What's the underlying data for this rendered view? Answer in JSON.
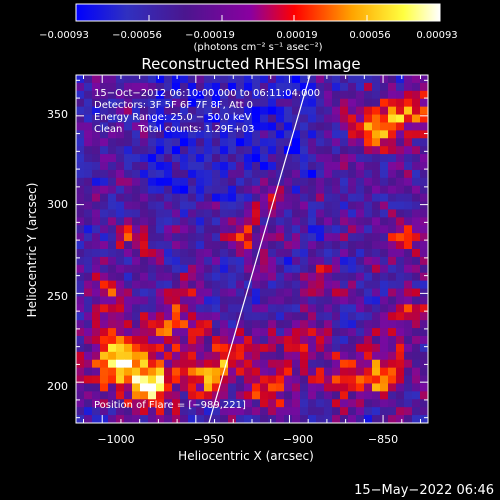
{
  "chart_data": {
    "type": "heatmap",
    "title": "Reconstructed RHESSI Image",
    "xlabel": "Heliocentric X (arcsec)",
    "ylabel": "Heliocentric Y (arcsec)",
    "x_ticks": [
      "−1000",
      "−950",
      "−900",
      "−850"
    ],
    "x_tick_values": [
      -1000,
      -950,
      -900,
      -850
    ],
    "y_ticks": [
      "200",
      "250",
      "300",
      "350"
    ],
    "y_tick_values": [
      200,
      250,
      300,
      350
    ],
    "xlim": [
      -1014,
      -826
    ],
    "ylim": [
      177,
      373
    ],
    "colorbar": {
      "ticks": [
        "−0.00093",
        "−0.00056",
        "−0.00019",
        "0.00019",
        "0.00056",
        "0.00093"
      ],
      "range": [
        -0.00093,
        0.00093
      ],
      "colors": [
        "#0000ff",
        "#3030c0",
        "#4b168f",
        "#8a00a0",
        "#ff0000",
        "#ffa500",
        "#ffff40",
        "#ffffff"
      ]
    },
    "colorbar_unit": "(photons cm⁻² s⁻¹ asec⁻²)",
    "annotations": {
      "line1": "15−Oct−2012 06:10:00.000 to 06:11:04.000",
      "line2": "Detectors: 3F 5F 6F 7F 8F, Att 0",
      "line3": "Energy Range: 25.0 − 50.0 keV",
      "line4": "Clean     Total counts: 1.29E+03",
      "position": "Position of Flare = [−989,221]"
    },
    "limb_line": {
      "x": [
        -943,
        -889
      ],
      "y": [
        177,
        373
      ]
    },
    "timestamp": "15−May−2022 06:46"
  }
}
